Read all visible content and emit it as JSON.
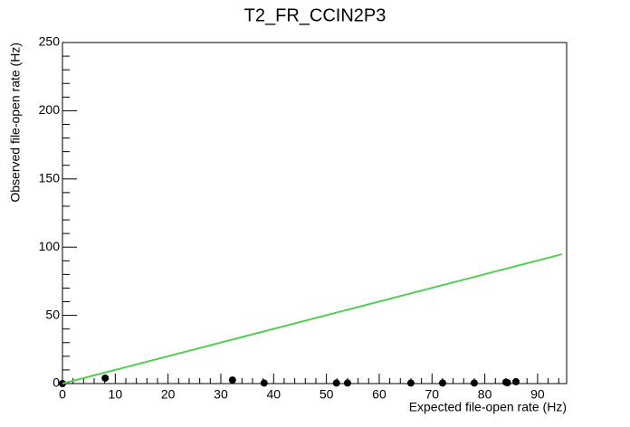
{
  "chart_data": {
    "type": "scatter",
    "title": "T2_FR_CCIN2P3",
    "x_label": "Expected file-open rate (Hz)",
    "y_label": "Observed file-open rate (Hz)",
    "xlim": [
      0,
      95.5
    ],
    "ylim": [
      0,
      250
    ],
    "xticks": [
      0,
      10,
      20,
      30,
      40,
      50,
      60,
      70,
      80,
      90
    ],
    "yticks": [
      0,
      50,
      100,
      150,
      200,
      250
    ],
    "series": [
      {
        "mode": "markers",
        "color": "#000000",
        "x": [
          0,
          8.1,
          32.2,
          38.2,
          51.9,
          54.0,
          66.0,
          72.0,
          78.0,
          84.0,
          84.3,
          85.9
        ],
        "values": [
          0,
          4,
          2.6,
          0.4,
          0.4,
          0.4,
          0.4,
          0.4,
          0.4,
          1,
          0.6,
          1.4
        ]
      },
      {
        "mode": "line",
        "color": "#55cc55",
        "x": [
          0,
          94.6
        ],
        "values": [
          0,
          94.8
        ]
      }
    ]
  }
}
